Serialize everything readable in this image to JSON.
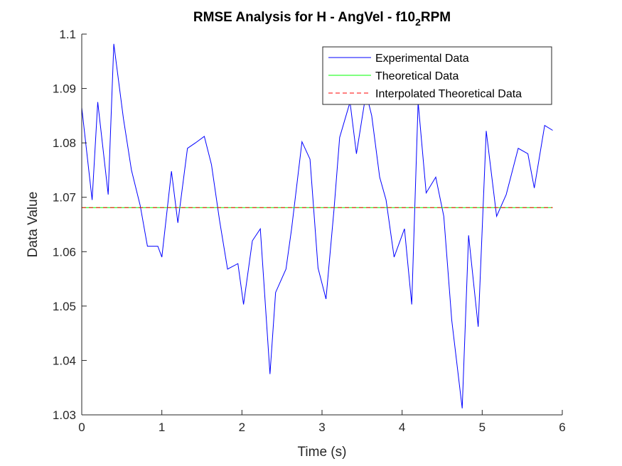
{
  "chart_data": {
    "type": "line",
    "title": "RMSE Analysis for H - AngVel - f10",
    "title_subscript": "2",
    "title_suffix": "RPM",
    "xlabel": "Time (s)",
    "ylabel": "Data Value",
    "xlim": [
      0,
      6
    ],
    "ylim": [
      1.03,
      1.1
    ],
    "xticks": [
      0,
      1,
      2,
      3,
      4,
      5,
      6
    ],
    "xtick_labels": [
      "0",
      "1",
      "2",
      "3",
      "4",
      "5",
      "6"
    ],
    "yticks": [
      1.03,
      1.04,
      1.05,
      1.06,
      1.07,
      1.08,
      1.09,
      1.1
    ],
    "ytick_labels": [
      "1.03",
      "1.04",
      "1.05",
      "1.06",
      "1.07",
      "1.08",
      "1.09",
      "1.1"
    ],
    "grid": false,
    "legend_position": "top-right",
    "series": [
      {
        "name": "Experimental Data",
        "color": "#0000ff",
        "style": "solid",
        "x": [
          0.0,
          0.13,
          0.2,
          0.33,
          0.4,
          0.52,
          0.62,
          0.73,
          0.82,
          0.95,
          1.0,
          1.12,
          1.2,
          1.32,
          1.42,
          1.53,
          1.62,
          1.72,
          1.82,
          1.95,
          2.02,
          2.13,
          2.23,
          2.35,
          2.42,
          2.55,
          2.62,
          2.75,
          2.85,
          2.95,
          3.05,
          3.15,
          3.22,
          3.35,
          3.43,
          3.55,
          3.62,
          3.72,
          3.8,
          3.9,
          4.03,
          4.12,
          4.2,
          4.3,
          4.42,
          4.52,
          4.62,
          4.75,
          4.83,
          4.95,
          5.05,
          5.18,
          5.3,
          5.45,
          5.57,
          5.65,
          5.78,
          5.88
        ],
        "values": [
          1.0865,
          1.0695,
          1.0875,
          1.0705,
          1.0982,
          1.0845,
          1.075,
          1.0685,
          1.061,
          1.061,
          1.059,
          1.0748,
          1.0653,
          1.079,
          1.08,
          1.0812,
          1.076,
          1.0658,
          1.0568,
          1.0578,
          1.0503,
          1.062,
          1.0642,
          1.0375,
          1.0525,
          1.0568,
          1.0642,
          1.0802,
          1.077,
          1.057,
          1.0513,
          1.0678,
          1.081,
          1.0875,
          1.078,
          1.0892,
          1.085,
          1.0737,
          1.0695,
          1.059,
          1.0642,
          1.0503,
          1.0875,
          1.0708,
          1.0737,
          1.0665,
          1.0474,
          1.0312,
          1.063,
          1.0462,
          1.0822,
          1.0665,
          1.0705,
          1.079,
          1.078,
          1.0717,
          1.0832,
          1.0823
        ]
      },
      {
        "name": "Theoretical Data",
        "color": "#00ff00",
        "style": "solid",
        "x": [
          0,
          5.88
        ],
        "values": [
          1.0681,
          1.0681
        ]
      },
      {
        "name": "Interpolated Theoretical Data",
        "color": "#ff0000",
        "style": "dashed",
        "x": [
          0,
          5.88
        ],
        "values": [
          1.0681,
          1.0681
        ]
      }
    ]
  }
}
